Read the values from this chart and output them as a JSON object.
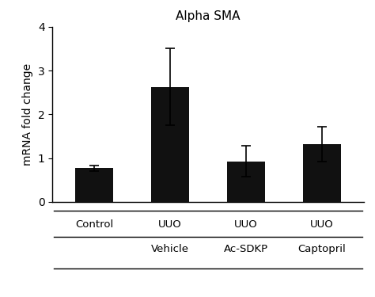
{
  "title": "Alpha SMA",
  "ylabel": "mRNA fold change",
  "bar_values": [
    0.77,
    2.63,
    0.93,
    1.32
  ],
  "error_values": [
    0.07,
    0.87,
    0.35,
    0.4
  ],
  "bar_color": "#111111",
  "bar_width": 0.5,
  "ylim": [
    0,
    4
  ],
  "yticks": [
    0,
    1,
    2,
    3,
    4
  ],
  "xlim": [
    -0.55,
    3.55
  ],
  "line1_labels": [
    "Control",
    "UUO",
    "UUO",
    "UUO"
  ],
  "line2_labels": [
    "",
    "Vehicle",
    "Ac-SDKP",
    "Captopril"
  ],
  "background_color": "#ffffff",
  "title_fontsize": 11,
  "axis_fontsize": 10,
  "tick_fontsize": 10,
  "label_fontsize": 9.5
}
